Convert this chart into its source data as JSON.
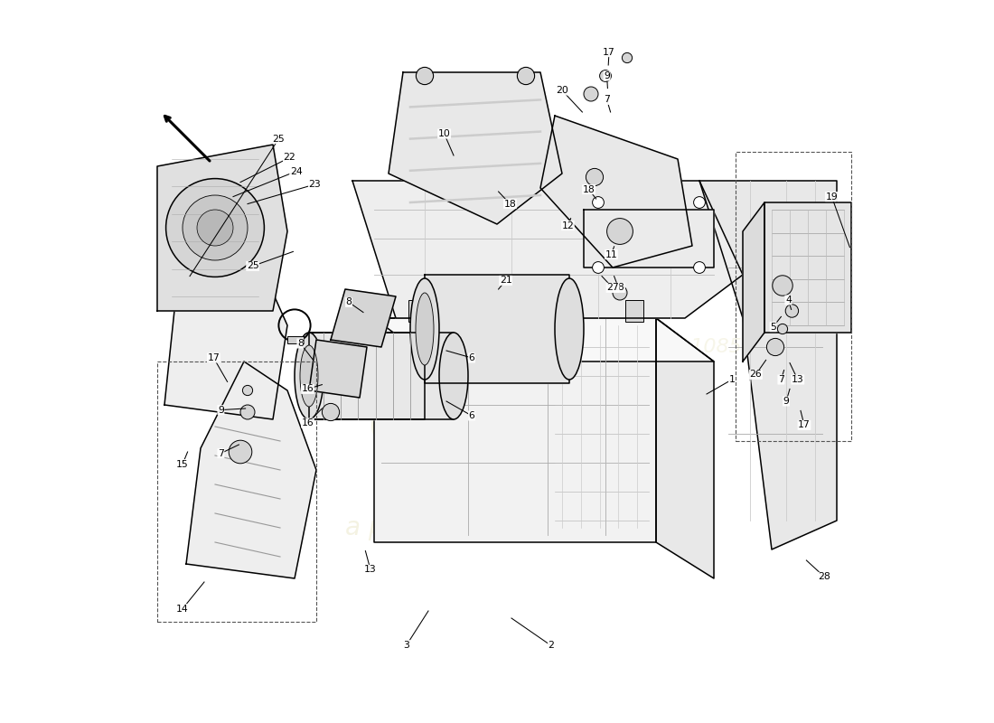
{
  "background_color": "#ffffff",
  "line_color": "#000000",
  "watermark_color": "#e8e4c0",
  "fill_light": "#f0f0f0",
  "fill_mid": "#e5e5e5",
  "fill_dark": "#d8d8d8"
}
